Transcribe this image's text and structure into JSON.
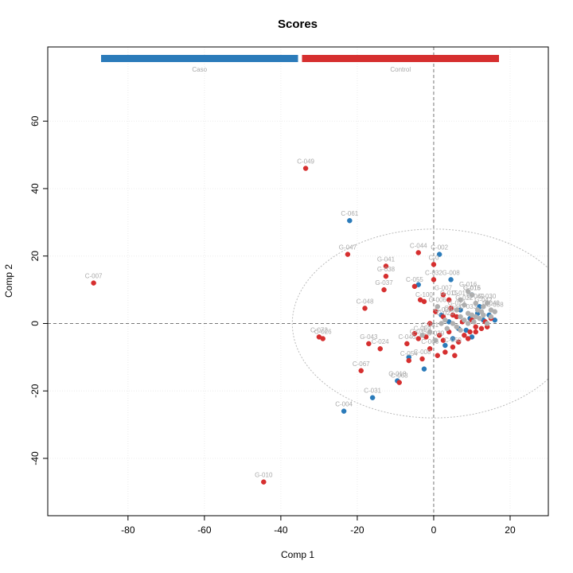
{
  "chart_data": {
    "type": "scatter",
    "title": "Scores",
    "xlabel": "Comp 1",
    "ylabel": "Comp 2",
    "xlim": [
      -101,
      30
    ],
    "ylim": [
      -57,
      82
    ],
    "xticks": [
      -80,
      -60,
      -40,
      -20,
      0,
      20
    ],
    "yticks": [
      -40,
      -20,
      0,
      20,
      40,
      60
    ],
    "grid": true,
    "reference_lines": {
      "x": 0,
      "y": 0
    },
    "ellipse": {
      "cx": 0,
      "cy": 0,
      "rx": 37,
      "ry": 28
    },
    "legend": {
      "placement": "top",
      "entries": [
        {
          "name": "Caso",
          "color": "#2b7bba"
        },
        {
          "name": "Control",
          "color": "#d62f2f"
        }
      ]
    },
    "series": [
      {
        "name": "Caso",
        "color": "#2b7bba",
        "points": [
          {
            "x": -22,
            "y": 30.5,
            "label": "C-061"
          },
          {
            "x": 1.5,
            "y": 20.5,
            "label": "C-002"
          },
          {
            "x": -23.5,
            "y": -26,
            "label": "C-004"
          },
          {
            "x": -16,
            "y": -22,
            "label": "C-031"
          },
          {
            "x": -9.5,
            "y": -17,
            "label": "G-018"
          },
          {
            "x": 4.5,
            "y": 13,
            "label": "G-008"
          },
          {
            "x": 10,
            "y": 8.5,
            "label": "G-016"
          },
          {
            "x": -4,
            "y": 11.5,
            "label": ""
          },
          {
            "x": 9.5,
            "y": 1.5,
            "label": ""
          },
          {
            "x": 11.5,
            "y": 3,
            "label": ""
          },
          {
            "x": 13,
            "y": 1,
            "label": ""
          },
          {
            "x": 14.5,
            "y": 2.5,
            "label": ""
          },
          {
            "x": 8.5,
            "y": -2,
            "label": ""
          },
          {
            "x": 10,
            "y": -4,
            "label": ""
          },
          {
            "x": 6.5,
            "y": -1.5,
            "label": ""
          },
          {
            "x": 5,
            "y": -4.5,
            "label": ""
          },
          {
            "x": 3,
            "y": -6.5,
            "label": ""
          },
          {
            "x": -2.5,
            "y": -13.5,
            "label": ""
          },
          {
            "x": -6.5,
            "y": -10,
            "label": ""
          },
          {
            "x": 12,
            "y": 5,
            "label": ""
          },
          {
            "x": 7,
            "y": 4,
            "label": ""
          },
          {
            "x": 16,
            "y": 1,
            "label": ""
          },
          {
            "x": 4,
            "y": 0.5,
            "label": ""
          },
          {
            "x": 2,
            "y": 2.5,
            "label": ""
          }
        ]
      },
      {
        "name": "Control",
        "color": "#d62f2f",
        "points": [
          {
            "x": -89,
            "y": 12,
            "label": "C-007"
          },
          {
            "x": -33.5,
            "y": 46,
            "label": "C-049"
          },
          {
            "x": -44.5,
            "y": -47,
            "label": "G-010"
          },
          {
            "x": -22.5,
            "y": 20.5,
            "label": "G-047"
          },
          {
            "x": -12.5,
            "y": 17,
            "label": "G-041"
          },
          {
            "x": -12.5,
            "y": 14,
            "label": "G-038"
          },
          {
            "x": -13,
            "y": 10,
            "label": "G-037"
          },
          {
            "x": -18,
            "y": 4.5,
            "label": "C-048"
          },
          {
            "x": -4,
            "y": 21,
            "label": "C-044"
          },
          {
            "x": 0,
            "y": 17.5,
            "label": "C-0"
          },
          {
            "x": -30,
            "y": -4,
            "label": "C-072"
          },
          {
            "x": -29,
            "y": -4.5,
            "label": "C-026"
          },
          {
            "x": -17,
            "y": -6,
            "label": "G-043"
          },
          {
            "x": -14,
            "y": -7.5,
            "label": "C-024"
          },
          {
            "x": -19,
            "y": -14,
            "label": "C-067"
          },
          {
            "x": -9,
            "y": -17.5,
            "label": "C-063"
          },
          {
            "x": 0,
            "y": 13,
            "label": "C-032"
          },
          {
            "x": -5,
            "y": 11,
            "label": "C-055"
          },
          {
            "x": -2.5,
            "y": 6.5,
            "label": "C-100"
          },
          {
            "x": 2.5,
            "y": 8.5,
            "label": "G-007"
          },
          {
            "x": 4,
            "y": 7,
            "label": "G-015"
          },
          {
            "x": 2.5,
            "y": 2,
            "label": "G-025"
          },
          {
            "x": 5,
            "y": 2.5,
            "label": "C-030"
          },
          {
            "x": -4,
            "y": -4.5,
            "label": "C-035"
          },
          {
            "x": -7,
            "y": -6,
            "label": "C-046"
          },
          {
            "x": -1,
            "y": -7.5,
            "label": "C-066"
          },
          {
            "x": -6.5,
            "y": -11,
            "label": "C-054"
          },
          {
            "x": -3,
            "y": -10.5,
            "label": "C-008"
          },
          {
            "x": 5,
            "y": -7,
            "label": "C-050"
          },
          {
            "x": 1,
            "y": -9.5,
            "label": ""
          },
          {
            "x": 3,
            "y": -8.5,
            "label": ""
          },
          {
            "x": 5.5,
            "y": -9.5,
            "label": ""
          },
          {
            "x": 6.5,
            "y": -5.5,
            "label": ""
          },
          {
            "x": 8,
            "y": -3.5,
            "label": ""
          },
          {
            "x": 9.5,
            "y": -2.5,
            "label": ""
          },
          {
            "x": 11,
            "y": -2.5,
            "label": ""
          },
          {
            "x": 12.5,
            "y": -1.5,
            "label": ""
          },
          {
            "x": 13.5,
            "y": 0.5,
            "label": ""
          },
          {
            "x": 15,
            "y": 1.5,
            "label": ""
          },
          {
            "x": 10,
            "y": 1,
            "label": ""
          },
          {
            "x": 7.5,
            "y": 0.5,
            "label": ""
          },
          {
            "x": 6,
            "y": 2,
            "label": ""
          },
          {
            "x": 4.5,
            "y": 4.5,
            "label": ""
          },
          {
            "x": 0.5,
            "y": 3.5,
            "label": ""
          },
          {
            "x": -1,
            "y": 0,
            "label": ""
          },
          {
            "x": 1.5,
            "y": -3.5,
            "label": ""
          },
          {
            "x": 2.5,
            "y": -5,
            "label": ""
          },
          {
            "x": 4,
            "y": -2.5,
            "label": ""
          },
          {
            "x": -5,
            "y": -3,
            "label": ""
          },
          {
            "x": -2,
            "y": -4,
            "label": ""
          },
          {
            "x": -3.5,
            "y": 7,
            "label": ""
          },
          {
            "x": 11,
            "y": -1,
            "label": ""
          },
          {
            "x": 14,
            "y": -1,
            "label": ""
          },
          {
            "x": 9,
            "y": -4.5,
            "label": ""
          }
        ]
      },
      {
        "name": "",
        "color": "#b0b0b0",
        "points": [
          {
            "x": 9,
            "y": 9.5,
            "label": "G-016"
          },
          {
            "x": 10,
            "y": 8.5,
            "label": "C-015"
          },
          {
            "x": 14,
            "y": 6,
            "label": "G-030"
          },
          {
            "x": 13,
            "y": 5,
            "label": "G-042"
          },
          {
            "x": 11,
            "y": 6,
            "label": "C-060"
          },
          {
            "x": 15,
            "y": 4,
            "label": "C-049"
          },
          {
            "x": 16,
            "y": 3.5,
            "label": "C-058"
          },
          {
            "x": 7,
            "y": 7,
            "label": "C-017"
          },
          {
            "x": 8,
            "y": 5.5,
            "label": "G-022"
          },
          {
            "x": 6,
            "y": 4,
            "label": "G-023"
          },
          {
            "x": 9,
            "y": 3,
            "label": "C-033"
          },
          {
            "x": 10,
            "y": 2.5,
            "label": ""
          },
          {
            "x": 11,
            "y": 2,
            "label": ""
          },
          {
            "x": 12,
            "y": 1.5,
            "label": ""
          },
          {
            "x": 13,
            "y": 2.5,
            "label": ""
          },
          {
            "x": 12.5,
            "y": 3.5,
            "label": ""
          },
          {
            "x": 11.5,
            "y": 4,
            "label": ""
          },
          {
            "x": 10.5,
            "y": 0.5,
            "label": ""
          },
          {
            "x": 9,
            "y": 0,
            "label": ""
          },
          {
            "x": 8,
            "y": 1,
            "label": ""
          },
          {
            "x": 7,
            "y": 2,
            "label": ""
          },
          {
            "x": 14,
            "y": 0,
            "label": ""
          },
          {
            "x": 15,
            "y": 2,
            "label": ""
          },
          {
            "x": 3,
            "y": 1,
            "label": "C-023"
          },
          {
            "x": 1,
            "y": 5,
            "label": "G-006"
          },
          {
            "x": -1,
            "y": -2.5,
            "label": "C-081"
          },
          {
            "x": 0.5,
            "y": -5,
            "label": "C-039"
          },
          {
            "x": -3,
            "y": -3.5,
            "label": "C-069"
          },
          {
            "x": 5,
            "y": 0,
            "label": ""
          },
          {
            "x": 6,
            "y": -1,
            "label": ""
          },
          {
            "x": 7,
            "y": -2,
            "label": ""
          },
          {
            "x": 3.5,
            "y": -1.5,
            "label": ""
          },
          {
            "x": 2,
            "y": 0,
            "label": ""
          }
        ]
      }
    ]
  }
}
